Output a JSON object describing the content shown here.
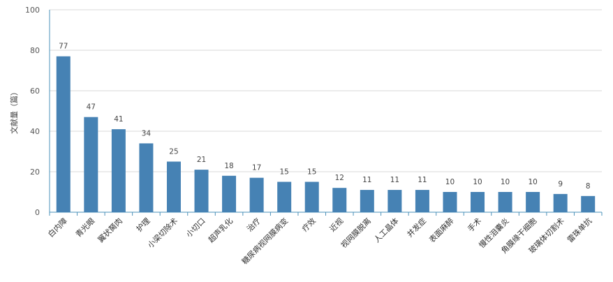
{
  "chart_data": {
    "type": "bar",
    "title": "",
    "xlabel": "",
    "ylabel": "文献量（篇）",
    "ylim": [
      0,
      100
    ],
    "yticks": [
      0,
      20,
      40,
      60,
      80,
      100
    ],
    "grid": true,
    "legend": "none",
    "bar_color": "#4682b4",
    "categories": [
      "白内障",
      "青光眼",
      "翼状胬肉",
      "护理",
      "小梁切除术",
      "小切口",
      "超声乳化",
      "治疗",
      "糖尿病视网膜病变",
      "疗效",
      "近视",
      "视网膜脱离",
      "人工晶体",
      "并发症",
      "表面麻醉",
      "手术",
      "慢性泪囊炎",
      "角膜缘干细胞",
      "玻璃体切割术",
      "雷珠单抗"
    ],
    "values": [
      77,
      47,
      41,
      34,
      25,
      21,
      18,
      17,
      15,
      15,
      12,
      11,
      11,
      11,
      10,
      10,
      10,
      10,
      9,
      8
    ]
  }
}
